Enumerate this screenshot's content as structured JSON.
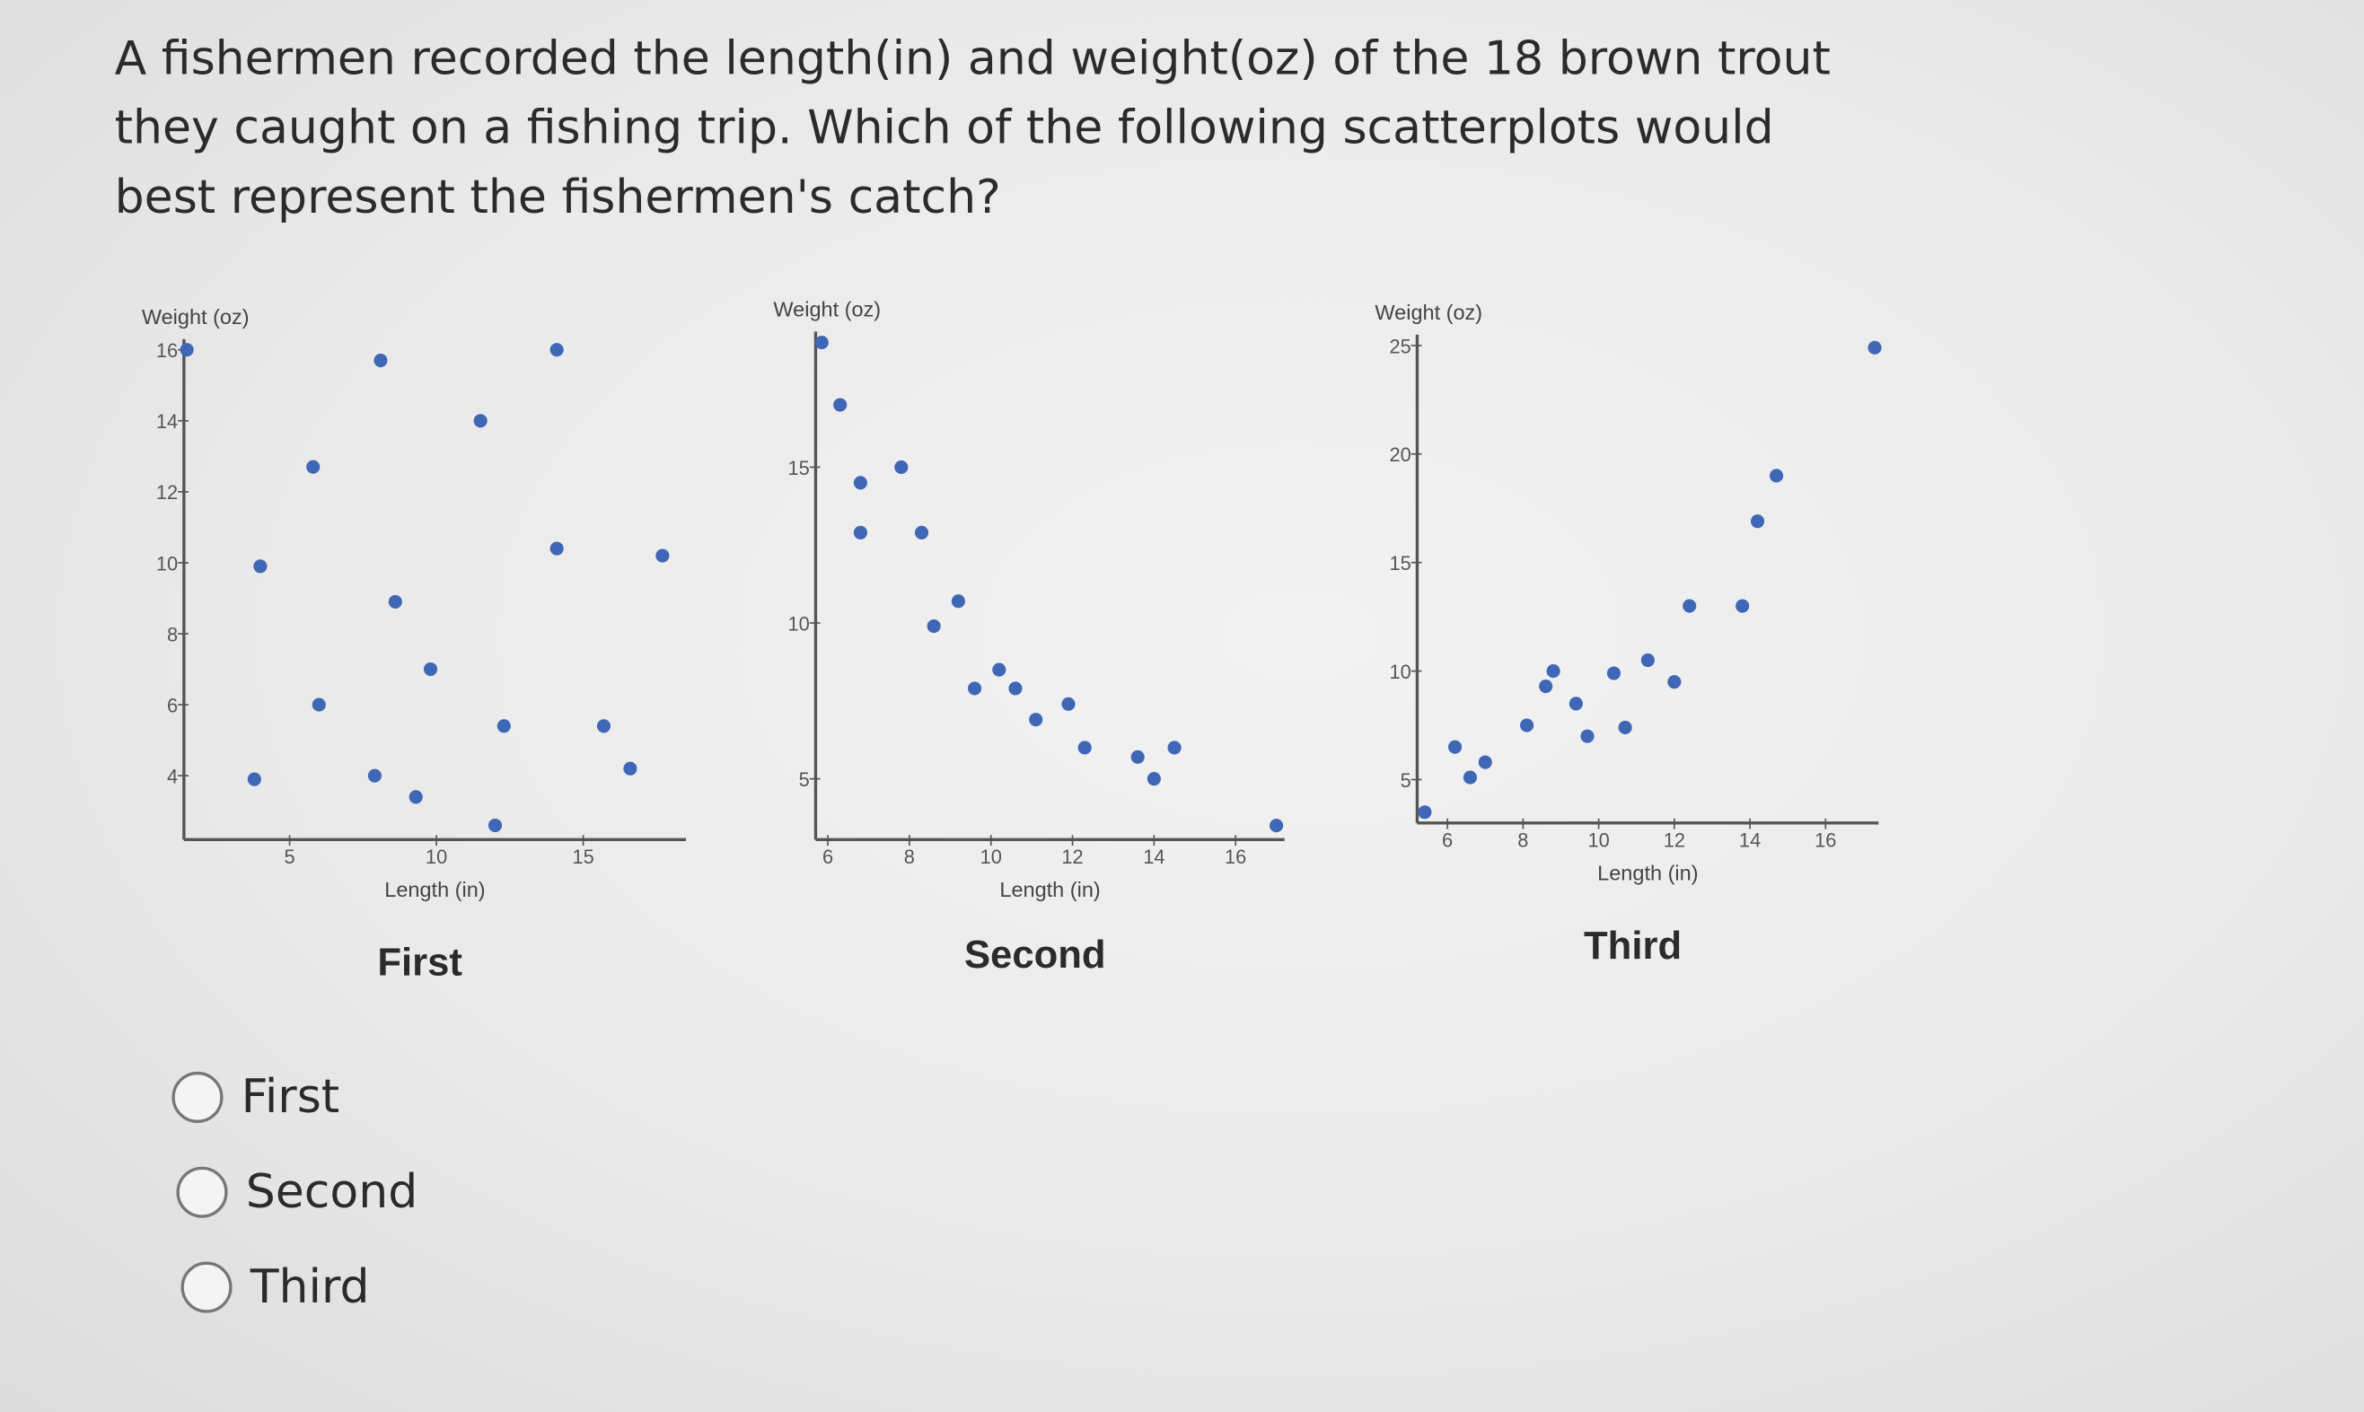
{
  "question": "A fishermen recorded the length(in) and weight(oz) of the 18 brown trout they caught on a fishing trip.  Which of the following scatterplots would best represent the fishermen's catch?",
  "chart_data": [
    {
      "type": "scatter",
      "title": "First",
      "x_label": "Length (in)",
      "y_label": "Weight (oz)",
      "color": "#3f67b5",
      "x": [
        1.5,
        8.1,
        14.1,
        11.5,
        5.8,
        4.0,
        14.1,
        17.7,
        8.6,
        9.8,
        6.0,
        12.3,
        15.7,
        16.6,
        3.8,
        7.9,
        9.3,
        12.0
      ],
      "values": [
        16,
        15.7,
        16,
        14,
        12.7,
        9.9,
        10.4,
        10.2,
        8.9,
        7.0,
        6.0,
        5.4,
        5.4,
        4.2,
        3.9,
        4.0,
        3.4,
        2.6
      ],
      "xlim": [
        1.4,
        18.5
      ],
      "ylim": [
        2.2,
        16.3
      ],
      "xticks": [
        5,
        10,
        15
      ],
      "yticks": [
        4,
        6,
        8,
        10,
        12,
        14,
        16
      ]
    },
    {
      "type": "scatter",
      "title": "Second",
      "x_label": "Length (in)",
      "y_label": "Weight (oz)",
      "color": "#3f67b5",
      "x": [
        5.85,
        6.3,
        6.8,
        7.8,
        6.8,
        8.3,
        9.2,
        8.6,
        10.2,
        9.6,
        10.6,
        11.9,
        11.1,
        12.3,
        13.6,
        14.5,
        14.0,
        17.0
      ],
      "values": [
        19.0,
        17.0,
        14.5,
        15.0,
        12.9,
        12.9,
        10.7,
        9.9,
        8.5,
        7.9,
        7.9,
        7.4,
        6.9,
        6.0,
        5.7,
        6.0,
        5.0,
        3.5
      ],
      "xlim": [
        5.7,
        17.2
      ],
      "ylim": [
        3.05,
        19.35
      ],
      "xticks": [
        6,
        8,
        10,
        12,
        14,
        16
      ],
      "yticks": [
        5,
        10,
        15
      ]
    },
    {
      "type": "scatter",
      "title": "Third",
      "x_label": "Length (in)",
      "y_label": "Weight (oz)",
      "color": "#3f67b5",
      "x": [
        5.4,
        6.2,
        6.6,
        7.0,
        8.1,
        8.6,
        8.8,
        9.4,
        9.7,
        10.4,
        10.7,
        11.3,
        12.0,
        12.4,
        13.8,
        14.2,
        14.7,
        17.3
      ],
      "values": [
        3.5,
        6.5,
        5.1,
        5.8,
        7.5,
        9.3,
        10.0,
        8.5,
        7.0,
        9.9,
        7.4,
        10.5,
        9.5,
        13.0,
        13.0,
        16.9,
        19.0,
        24.9
      ],
      "xlim": [
        5.2,
        17.4
      ],
      "ylim": [
        3.0,
        25.5
      ],
      "xticks": [
        6,
        8,
        10,
        12,
        14,
        16
      ],
      "yticks": [
        5,
        10,
        15,
        20,
        25
      ]
    }
  ],
  "options": [
    "First",
    "Second",
    "Third"
  ]
}
